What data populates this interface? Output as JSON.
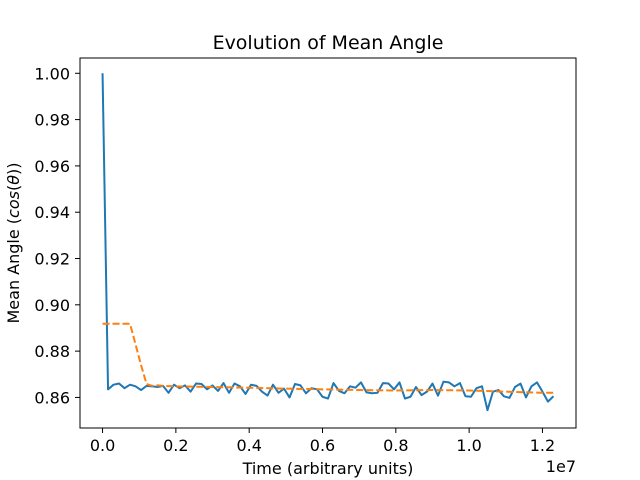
{
  "chart_data": {
    "type": "line",
    "title": "Evolution of Mean Angle",
    "xlabel": "Time (arbitrary units)",
    "ylabel": "Mean Angle (cos(θ))",
    "x_multiplier_label": "1e7",
    "xlim": [
      -0.0615,
      1.2915
    ],
    "ylim": [
      0.8468,
      1.0066
    ],
    "x_ticks": [
      0.0,
      0.2,
      0.4,
      0.6,
      0.8,
      1.0,
      1.2
    ],
    "x_tick_labels": [
      "0.0",
      "0.2",
      "0.4",
      "0.6",
      "0.8",
      "1.0",
      "1.2"
    ],
    "y_ticks": [
      0.86,
      0.88,
      0.9,
      0.92,
      0.94,
      0.96,
      0.98,
      1.0
    ],
    "y_tick_labels": [
      "0.86",
      "0.88",
      "0.90",
      "0.92",
      "0.94",
      "0.96",
      "0.98",
      "1.00"
    ],
    "grid": false,
    "x_units_scale": 10000000,
    "series": [
      {
        "style": "solid",
        "color": "#1f77b4",
        "x": [
          0.0,
          0.015,
          0.03,
          0.045,
          0.06,
          0.075,
          0.09,
          0.105,
          0.12,
          0.135,
          0.15,
          0.165,
          0.18,
          0.195,
          0.21,
          0.225,
          0.24,
          0.255,
          0.27,
          0.285,
          0.3,
          0.315,
          0.33,
          0.345,
          0.36,
          0.375,
          0.39,
          0.405,
          0.42,
          0.435,
          0.45,
          0.465,
          0.48,
          0.495,
          0.51,
          0.525,
          0.54,
          0.555,
          0.57,
          0.585,
          0.6,
          0.615,
          0.63,
          0.645,
          0.66,
          0.675,
          0.69,
          0.705,
          0.72,
          0.735,
          0.75,
          0.765,
          0.78,
          0.795,
          0.81,
          0.825,
          0.84,
          0.855,
          0.87,
          0.885,
          0.9,
          0.915,
          0.93,
          0.945,
          0.96,
          0.975,
          0.99,
          1.005,
          1.02,
          1.035,
          1.05,
          1.065,
          1.08,
          1.095,
          1.11,
          1.125,
          1.14,
          1.155,
          1.17,
          1.185,
          1.2,
          1.215,
          1.23
        ],
        "y": [
          1.0,
          0.8635,
          0.8655,
          0.866,
          0.864,
          0.8655,
          0.8648,
          0.8632,
          0.865,
          0.8648,
          0.8645,
          0.865,
          0.862,
          0.8655,
          0.864,
          0.8652,
          0.8625,
          0.866,
          0.8658,
          0.8635,
          0.8652,
          0.8628,
          0.8662,
          0.862,
          0.866,
          0.8648,
          0.8615,
          0.8655,
          0.865,
          0.8625,
          0.8608,
          0.8655,
          0.862,
          0.8638,
          0.86,
          0.8658,
          0.8652,
          0.8618,
          0.864,
          0.8635,
          0.8603,
          0.8595,
          0.8662,
          0.8628,
          0.8618,
          0.8648,
          0.8642,
          0.8665,
          0.8622,
          0.8618,
          0.862,
          0.8662,
          0.866,
          0.8635,
          0.8665,
          0.8595,
          0.8603,
          0.8645,
          0.861,
          0.8625,
          0.866,
          0.8608,
          0.8668,
          0.8665,
          0.8648,
          0.8662,
          0.8605,
          0.8603,
          0.864,
          0.8648,
          0.8545,
          0.8625,
          0.8632,
          0.8605,
          0.8598,
          0.8645,
          0.866,
          0.86,
          0.8648,
          0.8665,
          0.8625,
          0.8582,
          0.8605
        ]
      },
      {
        "style": "dashed",
        "color": "#ff7f0e",
        "x": [
          0.0,
          0.075,
          0.105,
          0.12,
          0.135,
          0.15,
          0.165,
          0.2,
          0.3,
          0.4,
          0.5,
          0.6,
          0.7,
          0.8,
          0.9,
          1.0,
          1.1,
          1.2,
          1.23
        ],
        "y": [
          0.8918,
          0.8918,
          0.874,
          0.8658,
          0.865,
          0.8652,
          0.865,
          0.8648,
          0.8645,
          0.8642,
          0.8638,
          0.8635,
          0.8632,
          0.863,
          0.8632,
          0.863,
          0.8625,
          0.862,
          0.862
        ]
      }
    ]
  }
}
